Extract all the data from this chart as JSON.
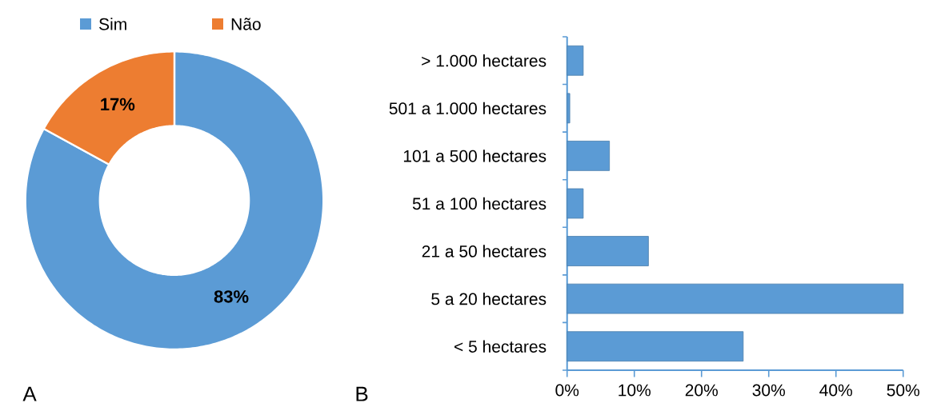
{
  "chart_data": [
    {
      "type": "donut",
      "categories": [
        "Sim",
        "Não"
      ],
      "values": [
        83,
        17
      ],
      "colors": [
        "#5b9bd5",
        "#ed7d31"
      ],
      "value_labels": [
        "83%",
        "17%"
      ],
      "legend": "top",
      "annotations": [
        "A"
      ]
    },
    {
      "type": "bar",
      "orientation": "horizontal",
      "categories": [
        "> 1.000 hectares",
        "501 a 1.000 hectares",
        "101 a 500 hectares",
        "51 a 100 hectares",
        "21 a 50 hectares",
        "5 a 20 hectares",
        "< 5 hectares"
      ],
      "values": [
        2.4,
        0.4,
        6.3,
        2.4,
        12.1,
        50,
        26.2
      ],
      "color": "#5b9bd5",
      "xlim": [
        0,
        50
      ],
      "xticks": [
        {
          "value": 0,
          "label": "0%"
        },
        {
          "value": 10,
          "label": "10%"
        },
        {
          "value": 20,
          "label": "20%"
        },
        {
          "value": 30,
          "label": "30%"
        },
        {
          "value": 40,
          "label": "40%"
        },
        {
          "value": 50,
          "label": "50%"
        }
      ],
      "annotations": [
        "B"
      ]
    }
  ]
}
